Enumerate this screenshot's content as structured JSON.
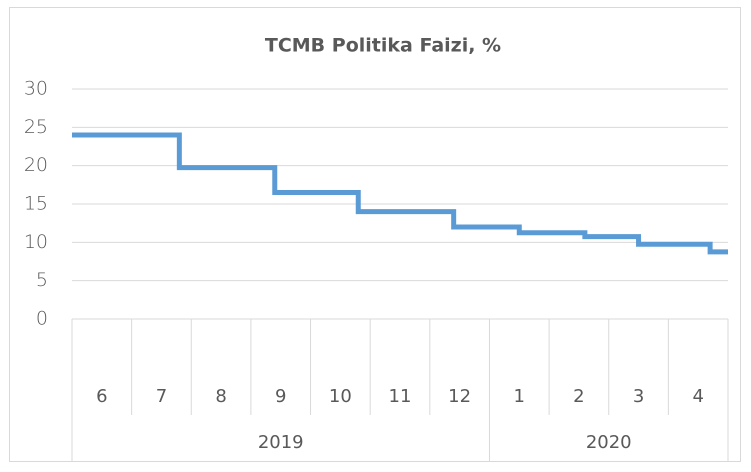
{
  "chart_data": {
    "type": "step",
    "title": "TCMB Politika Faizi, %",
    "groups": [
      {
        "name": "2019",
        "categories": [
          "6",
          "7",
          "8",
          "9",
          "10",
          "11",
          "12"
        ]
      },
      {
        "name": "2020",
        "categories": [
          "1",
          "2",
          "3",
          "4"
        ]
      }
    ],
    "xlim": [
      0,
      11
    ],
    "series": [
      {
        "color": "#5b9bd5",
        "x": [
          0,
          1.8,
          3.4,
          4.8,
          6.4,
          7.5,
          8.6,
          9.5,
          10.7
        ],
        "values": [
          24,
          19.75,
          16.5,
          14,
          12,
          11.25,
          10.75,
          9.75,
          8.75
        ]
      }
    ],
    "ylim": [
      0,
      30
    ],
    "yticks": [
      0,
      5,
      10,
      15,
      20,
      25,
      30
    ],
    "grid": true
  }
}
